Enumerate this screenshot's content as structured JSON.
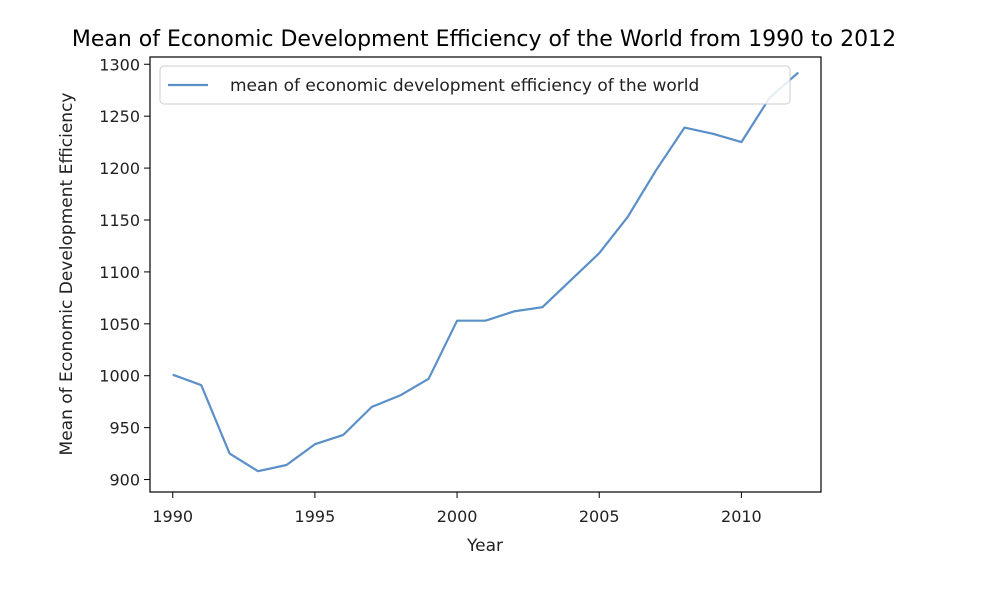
{
  "chart_data": {
    "type": "line",
    "title": "Mean of Economic Development Efficiency of the World from 1990 to 2012",
    "xlabel": "Year",
    "ylabel": "Mean of Economic Development Efficiency",
    "xlim": [
      1989.2,
      2012.8
    ],
    "ylim": [
      888,
      1307
    ],
    "xticks": [
      1990,
      1995,
      2000,
      2005,
      2010
    ],
    "yticks": [
      900,
      950,
      1000,
      1050,
      1100,
      1150,
      1200,
      1250,
      1300
    ],
    "grid": false,
    "legend_position": "top-left",
    "line_color": "#5a8fc7",
    "series": [
      {
        "name": "mean of economic development efficiency of the world",
        "x": [
          1990,
          1991,
          1992,
          1993,
          1994,
          1995,
          1996,
          1997,
          1998,
          1999,
          2000,
          2001,
          2002,
          2003,
          2004,
          2005,
          2006,
          2007,
          2008,
          2009,
          2010,
          2011,
          2012
        ],
        "y": [
          1001,
          991,
          925,
          908,
          914,
          934,
          943,
          970,
          981,
          997,
          1053,
          1053,
          1062,
          1066,
          1092,
          1118,
          1153,
          1198,
          1239,
          1233,
          1225,
          1268,
          1292
        ]
      }
    ]
  }
}
